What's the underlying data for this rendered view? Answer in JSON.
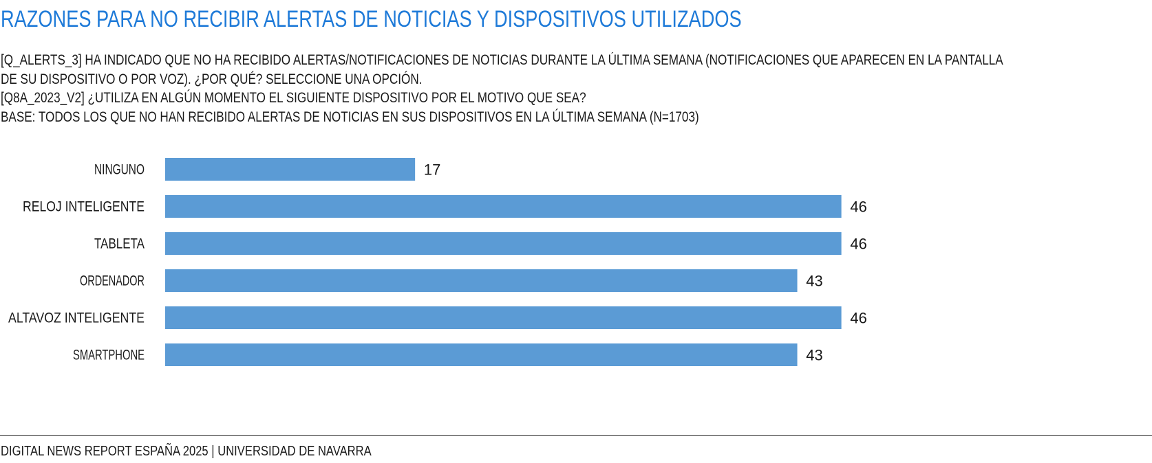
{
  "header": {
    "title": "RAZONES PARA NO RECIBIR ALERTAS DE NOTICIAS Y DISPOSITIVOS UTILIZADOS",
    "subtitle_lines": [
      "[Q_ALERTS_3] HA INDICADO QUE NO HA RECIBIDO ALERTAS/NOTIFICACIONES DE NOTICIAS DURANTE LA ÚLTIMA SEMANA (NOTIFICACIONES QUE APARECEN EN LA PANTALLA",
      "DE SU DISPOSITIVO O POR VOZ). ¿POR QUÉ? SELECCIONE UNA OPCIÓN.",
      "[Q8A_2023_V2] ¿UTILIZA EN ALGÚN MOMENTO EL SIGUIENTE DISPOSITIVO POR EL MOTIVO QUE SEA?",
      "BASE: TODOS LOS QUE NO HAN RECIBIDO ALERTAS DE NOTICIAS EN SUS DISPOSITIVOS EN LA ÚLTIMA SEMANA (N=1703)"
    ]
  },
  "footer": {
    "text": "DIGITAL NEWS REPORT ESPAÑA 2025 | UNIVERSIDAD DE NAVARRA"
  },
  "colors": {
    "title": "#1e7ad8",
    "bar": "#5b9bd5",
    "text": "#1a1a1a"
  },
  "chart_data": {
    "type": "bar",
    "orientation": "horizontal",
    "categories": [
      "NINGUNO",
      "RELOJ INTELIGENTE",
      "TABLETA",
      "ORDENADOR",
      "ALTAVOZ INTELIGENTE",
      "SMARTPHONE"
    ],
    "values": [
      17,
      46,
      46,
      43,
      46,
      43
    ],
    "data_labels": [
      "17",
      "46",
      "46",
      "43",
      "46",
      "43"
    ],
    "xlim": [
      0,
      47
    ],
    "grid": false,
    "legend": "none"
  }
}
